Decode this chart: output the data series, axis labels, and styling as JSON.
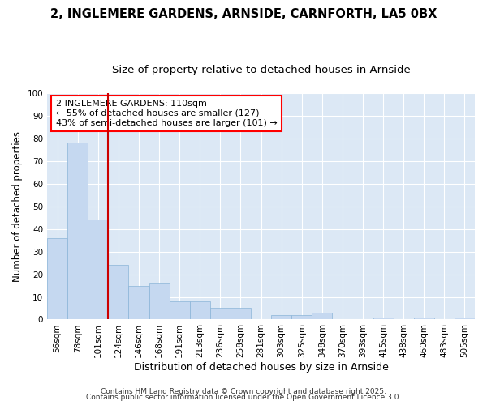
{
  "title": "2, INGLEMERE GARDENS, ARNSIDE, CARNFORTH, LA5 0BX",
  "subtitle": "Size of property relative to detached houses in Arnside",
  "xlabel": "Distribution of detached houses by size in Arnside",
  "ylabel": "Number of detached properties",
  "categories": [
    "56sqm",
    "78sqm",
    "101sqm",
    "124sqm",
    "146sqm",
    "168sqm",
    "191sqm",
    "213sqm",
    "236sqm",
    "258sqm",
    "281sqm",
    "303sqm",
    "325sqm",
    "348sqm",
    "370sqm",
    "393sqm",
    "415sqm",
    "438sqm",
    "460sqm",
    "483sqm",
    "505sqm"
  ],
  "values": [
    36,
    78,
    44,
    24,
    15,
    16,
    8,
    8,
    5,
    5,
    0,
    2,
    2,
    3,
    0,
    0,
    1,
    0,
    1,
    0,
    1
  ],
  "bar_color": "#c5d8f0",
  "bar_edge_color": "#8ab4d8",
  "vline_x_index": 2,
  "vline_color": "#cc0000",
  "annotation_text": "2 INGLEMERE GARDENS: 110sqm\n← 55% of detached houses are smaller (127)\n43% of semi-detached houses are larger (101) →",
  "ylim": [
    0,
    100
  ],
  "yticks": [
    0,
    10,
    20,
    30,
    40,
    50,
    60,
    70,
    80,
    90,
    100
  ],
  "bg_color": "#dce8f5",
  "footer_line1": "Contains HM Land Registry data © Crown copyright and database right 2025.",
  "footer_line2": "Contains public sector information licensed under the Open Government Licence 3.0.",
  "title_fontsize": 10.5,
  "subtitle_fontsize": 9.5,
  "xlabel_fontsize": 9,
  "ylabel_fontsize": 8.5,
  "tick_fontsize": 7.5,
  "annotation_fontsize": 8,
  "footer_fontsize": 6.5
}
